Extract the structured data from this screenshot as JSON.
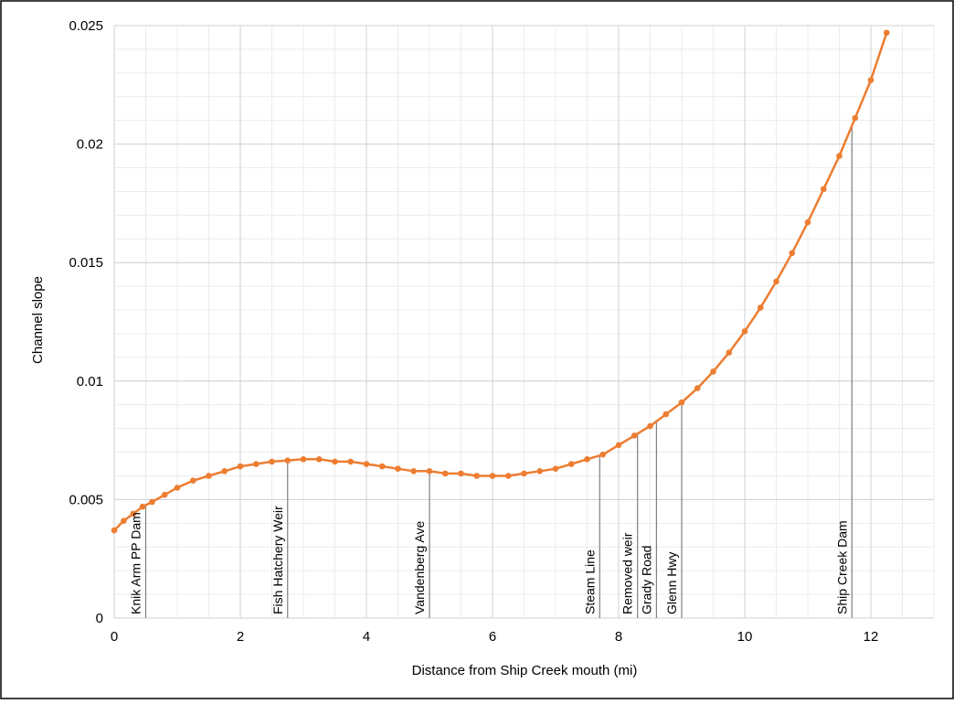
{
  "chart_data": {
    "type": "scatter",
    "title": "",
    "xlabel": "Distance from Ship Creek mouth (mi)",
    "ylabel": "Channel slope",
    "xlim": [
      0,
      13
    ],
    "ylim": [
      0,
      0.025
    ],
    "x_ticks": [
      0,
      2,
      4,
      6,
      8,
      10,
      12
    ],
    "y_ticks": [
      0,
      0.005,
      0.01,
      0.015,
      0.02,
      0.025
    ],
    "x_tick_labels": [
      "0",
      "2",
      "4",
      "6",
      "8",
      "10",
      "12"
    ],
    "y_tick_labels": [
      "0",
      "0.005",
      "0.01",
      "0.015",
      "0.02",
      "0.025"
    ],
    "grid": true,
    "series_color": "#ED7D31",
    "series": [
      {
        "x": [
          0,
          0.15,
          0.3,
          0.45,
          0.6,
          0.8,
          1.0,
          1.25,
          1.5,
          1.75,
          2.0,
          2.25,
          2.5,
          2.75,
          3.0,
          3.25,
          3.5,
          3.75,
          4.0,
          4.25,
          4.5,
          4.75,
          5.0,
          5.25,
          5.5,
          5.75,
          6.0,
          6.25,
          6.5,
          6.75,
          7.0,
          7.25,
          7.5,
          7.75,
          8.0,
          8.25,
          8.5,
          8.75,
          9.0,
          9.25,
          9.5,
          9.75,
          10.0,
          10.25,
          10.5,
          10.75,
          11.0,
          11.25,
          11.5,
          11.75,
          12.0,
          12.25
        ],
        "y": [
          0.0037,
          0.0041,
          0.0044,
          0.0047,
          0.0049,
          0.0052,
          0.0055,
          0.0058,
          0.006,
          0.0062,
          0.0064,
          0.0065,
          0.0066,
          0.00665,
          0.0067,
          0.0067,
          0.0066,
          0.0066,
          0.0065,
          0.0064,
          0.0063,
          0.0062,
          0.0062,
          0.0061,
          0.0061,
          0.006,
          0.006,
          0.006,
          0.0061,
          0.0062,
          0.0063,
          0.0065,
          0.0067,
          0.0069,
          0.0073,
          0.0077,
          0.0081,
          0.0086,
          0.0091,
          0.0097,
          0.0104,
          0.0112,
          0.0121,
          0.0131,
          0.0142,
          0.0154,
          0.0167,
          0.0181,
          0.0195,
          0.0211,
          0.0227,
          0.0247
        ]
      }
    ],
    "annotations": [
      {
        "label": "Knik Arm PP Dam",
        "x": 0.5
      },
      {
        "label": "Fish Hatchery Weir",
        "x": 2.75
      },
      {
        "label": "Vandenberg Ave",
        "x": 5.0
      },
      {
        "label": "Steam Line",
        "x": 7.7
      },
      {
        "label": "Removed weir",
        "x": 8.3
      },
      {
        "label": "Grady Road",
        "x": 8.6
      },
      {
        "label": "Glenn Hwy",
        "x": 9.0
      },
      {
        "label": "Ship Creek Dam",
        "x": 11.7
      }
    ]
  }
}
